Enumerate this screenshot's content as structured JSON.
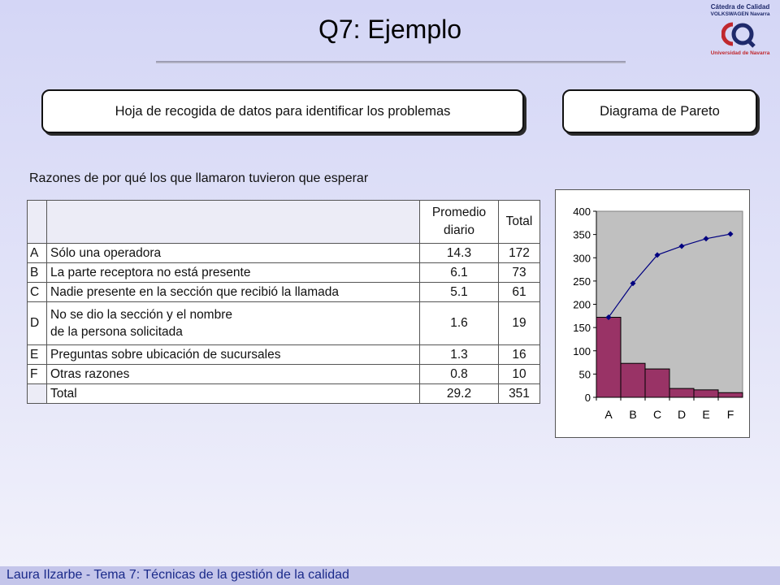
{
  "header": {
    "title": "Q7: Ejemplo",
    "logo_line1": "Cátedra de Calidad",
    "logo_line2": "VOLKSWAGEN Navarra",
    "logo_line3": "Universidad de Navarra"
  },
  "boxes": {
    "left": "Hoja de recogida de datos para identificar los problemas",
    "right": "Diagrama de Pareto"
  },
  "table": {
    "caption": "Razones de por qué los que llamaron tuvieron que esperar",
    "col_promedio_line1": "Promedio",
    "col_promedio_line2": "diario",
    "col_total": "Total",
    "rows": [
      {
        "key": "A",
        "reason": "Sólo una operadora",
        "promedio": "14.3",
        "total": "172"
      },
      {
        "key": "B",
        "reason": "La parte receptora no está presente",
        "promedio": "6.1",
        "total": "73"
      },
      {
        "key": "C",
        "reason": "Nadie presente en la sección que recibió la llamada",
        "promedio": "5.1",
        "total": "61"
      },
      {
        "key": "D",
        "reason": "No se dio la sección y el nombre\nde la persona solicitada",
        "promedio": "1.6",
        "total": "19"
      },
      {
        "key": "E",
        "reason": "Preguntas sobre ubicación de sucursales",
        "promedio": "1.3",
        "total": "16"
      },
      {
        "key": "F",
        "reason": "Otras razones",
        "promedio": "0.8",
        "total": "10"
      }
    ],
    "total_row": {
      "label": "Total",
      "promedio": "29.2",
      "total": "351"
    }
  },
  "chart_data": {
    "type": "bar",
    "categories": [
      "A",
      "B",
      "C",
      "D",
      "E",
      "F"
    ],
    "series": [
      {
        "type": "bar",
        "values": [
          172,
          73,
          61,
          19,
          16,
          10
        ]
      },
      {
        "type": "line",
        "values": [
          172,
          245,
          306,
          325,
          341,
          351
        ]
      }
    ],
    "ylim": [
      0,
      400
    ],
    "yticks": [
      0,
      50,
      100,
      150,
      200,
      250,
      300,
      350,
      400
    ],
    "colors": {
      "bar": "#993366",
      "line": "#000080",
      "plot_bg": "#c0c0c0"
    }
  },
  "footer": {
    "text": "Laura Ilzarbe - Tema 7: Técnicas de la gestión de la calidad"
  }
}
